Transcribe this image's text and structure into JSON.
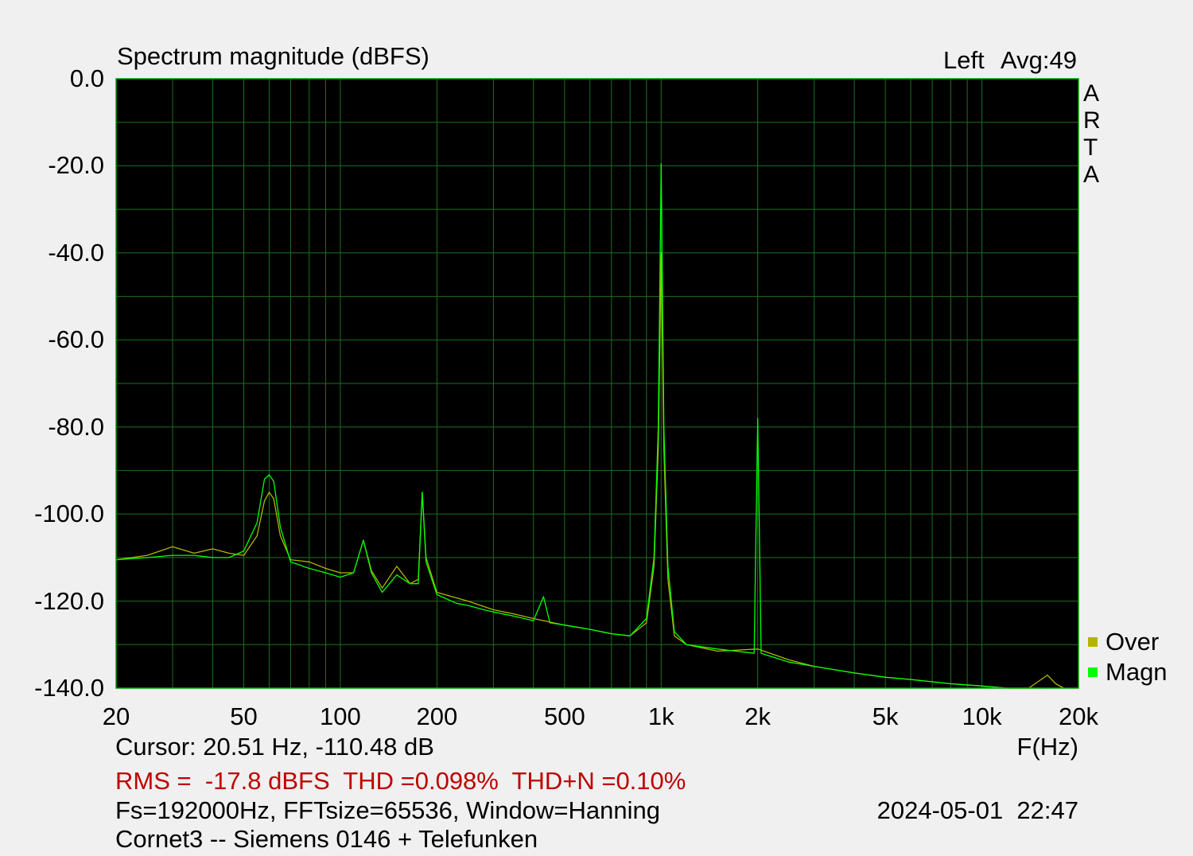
{
  "header": {
    "title": "Spectrum magnitude (dBFS)",
    "channel": "Left",
    "avg_label": "Avg:49"
  },
  "brand_letters": [
    "A",
    "R",
    "T",
    "A"
  ],
  "legend": [
    {
      "label": "Over",
      "color": "#b4b400"
    },
    {
      "label": "Magn",
      "color": "#00ff00"
    }
  ],
  "footer": {
    "cursor": "Cursor: 20.51 Hz, -110.48 dB",
    "xunit": "F(Hz)",
    "stats": "RMS =  -17.8 dBFS  THD =0.098%  THD+N =0.10%",
    "settings": "Fs=192000Hz, FFTsize=65536, Window=Hanning",
    "datetime": "2024-05-01  22:47",
    "description": "Cornet3 -- Siemens 0146 + Telefunken"
  },
  "chart_data": {
    "type": "line",
    "title": "Spectrum magnitude (dBFS)",
    "xlabel": "F(Hz)",
    "ylabel": "",
    "x_scale": "log",
    "xlim": [
      20,
      20000
    ],
    "ylim": [
      -140,
      0
    ],
    "grid": true,
    "legend_position": "bottom-right",
    "y_ticks": [
      0,
      -20,
      -40,
      -60,
      -80,
      -100,
      -120,
      -140
    ],
    "y_tick_labels": [
      "0.0",
      "-20.0",
      "-40.0",
      "-60.0",
      "-80.0",
      "-100.0",
      "-120.0",
      "-140.0"
    ],
    "x_ticks": [
      20,
      50,
      100,
      200,
      500,
      1000,
      2000,
      5000,
      10000,
      20000
    ],
    "x_tick_labels": [
      "20",
      "50",
      "100",
      "200",
      "500",
      "1k",
      "2k",
      "5k",
      "10k",
      "20k"
    ],
    "colors": {
      "background": "#000000",
      "grid": "#1f6f1f",
      "frame": "#00a000"
    },
    "series": [
      {
        "name": "Over",
        "color": "#b4b400",
        "x": [
          20,
          25,
          30,
          35,
          40,
          45,
          50,
          55,
          58,
          60,
          62,
          65,
          70,
          80,
          90,
          100,
          110,
          118,
          125,
          135,
          150,
          165,
          175,
          180,
          185,
          200,
          250,
          300,
          350,
          400,
          500,
          600,
          700,
          800,
          900,
          950,
          980,
          1000,
          1020,
          1050,
          1100,
          1200,
          1500,
          2000,
          2500,
          3000,
          4000,
          5000,
          6000,
          8000,
          10000,
          12000,
          14000,
          16000,
          17000,
          18000
        ],
        "y": [
          -110.5,
          -109.5,
          -107.5,
          -109.0,
          -108.0,
          -109.0,
          -109.5,
          -105.0,
          -97.0,
          -95.0,
          -96.5,
          -105.0,
          -110.5,
          -111.0,
          -112.5,
          -113.5,
          -113.5,
          -106.0,
          -113.0,
          -117.0,
          -112.0,
          -116.0,
          -115.0,
          -95.0,
          -110.0,
          -118.0,
          -120.0,
          -122.0,
          -123.0,
          -124.0,
          -125.5,
          -126.5,
          -127.5,
          -128.0,
          -125.0,
          -112.0,
          -85.0,
          -40.0,
          -85.0,
          -115.0,
          -128.0,
          -130.0,
          -131.5,
          -131.0,
          -133.5,
          -135.0,
          -136.5,
          -137.5,
          -138.0,
          -139.0,
          -139.5,
          -140.0,
          -140.0,
          -137.0,
          -139.0,
          -140.0
        ]
      },
      {
        "name": "Magn",
        "color": "#00ff00",
        "x": [
          20,
          25,
          30,
          35,
          40,
          45,
          50,
          55,
          58,
          60,
          62,
          65,
          70,
          80,
          90,
          100,
          110,
          118,
          125,
          135,
          150,
          165,
          175,
          180,
          185,
          200,
          230,
          250,
          280,
          300,
          350,
          400,
          430,
          450,
          500,
          600,
          700,
          800,
          900,
          950,
          980,
          1000,
          1020,
          1050,
          1100,
          1200,
          1500,
          1950,
          2000,
          2050,
          2500,
          3000,
          4000,
          5000,
          6000,
          8000,
          10000,
          12000,
          14000,
          16000
        ],
        "y": [
          -110.5,
          -110.0,
          -109.5,
          -109.5,
          -110.0,
          -110.0,
          -108.5,
          -102.0,
          -92.0,
          -91.0,
          -92.5,
          -103.0,
          -111.0,
          -112.5,
          -113.5,
          -114.5,
          -113.5,
          -106.0,
          -113.5,
          -118.0,
          -114.0,
          -116.0,
          -116.0,
          -95.0,
          -111.0,
          -118.5,
          -120.5,
          -121.0,
          -122.0,
          -122.5,
          -123.5,
          -124.5,
          -119.0,
          -125.0,
          -125.5,
          -126.5,
          -127.5,
          -128.0,
          -124.0,
          -110.0,
          -80.0,
          -19.5,
          -80.0,
          -112.0,
          -127.0,
          -130.0,
          -131.0,
          -132.0,
          -78.0,
          -132.0,
          -134.0,
          -135.0,
          -136.5,
          -137.5,
          -138.0,
          -139.0,
          -139.5,
          -140.0,
          -140.0,
          -140.0
        ]
      }
    ]
  }
}
